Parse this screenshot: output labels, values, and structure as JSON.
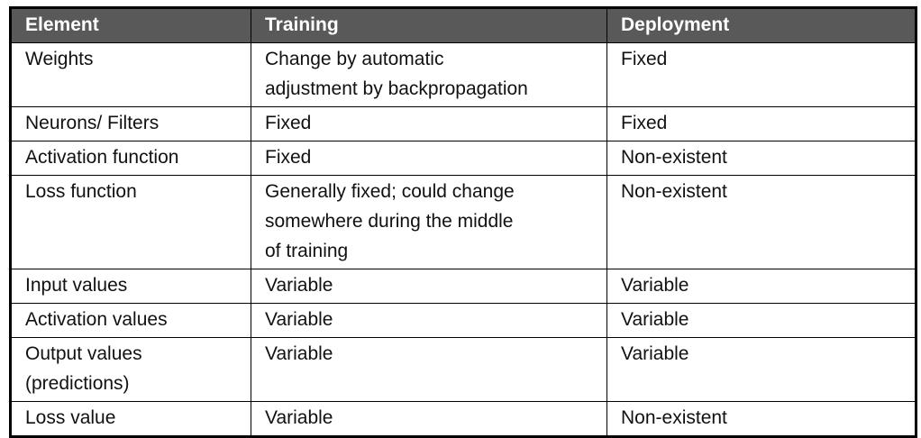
{
  "table": {
    "columns": [
      {
        "label": "Element"
      },
      {
        "label": "Training"
      },
      {
        "label": "Deployment"
      }
    ],
    "rows": [
      {
        "element": "Weights",
        "training": "Change by automatic\nadjustment by backpropagation",
        "deployment": "Fixed"
      },
      {
        "element": "Neurons/ Filters",
        "training": "Fixed",
        "deployment": "Fixed"
      },
      {
        "element": "Activation function",
        "training": "Fixed",
        "deployment": "Non-existent"
      },
      {
        "element": "Loss function",
        "training": "Generally fixed; could change\nsomewhere during the middle\nof training",
        "deployment": "Non-existent"
      },
      {
        "element": "Input values",
        "training": "Variable",
        "deployment": "Variable"
      },
      {
        "element": "Activation values",
        "training": "Variable",
        "deployment": "Variable"
      },
      {
        "element": "Output values\n(predictions)",
        "training": "Variable",
        "deployment": "Variable"
      },
      {
        "element": "Loss value",
        "training": "Variable",
        "deployment": "Non-existent"
      }
    ],
    "colors": {
      "header_bg": "#595959",
      "header_text": "#ffffff",
      "border": "#000000",
      "body_text": "#111111"
    }
  }
}
